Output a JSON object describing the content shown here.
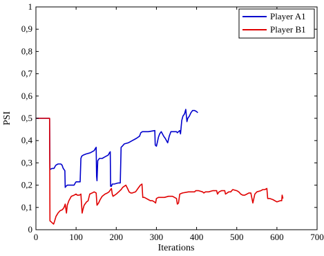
{
  "chart_data": {
    "type": "line",
    "xlabel": "Iterations",
    "ylabel": "PSI",
    "xlim": [
      0,
      700
    ],
    "ylim": [
      0,
      1
    ],
    "xticks": [
      "0",
      "100",
      "200",
      "300",
      "400",
      "500",
      "600",
      "700"
    ],
    "yticks": [
      "0",
      "0,1",
      "0,2",
      "0,3",
      "0,4",
      "0,5",
      "0,6",
      "0,7",
      "0,8",
      "0,9",
      "1"
    ],
    "grid": false,
    "legend": "top-right",
    "series": [
      {
        "name": "Player A1",
        "color": "#0000cc",
        "points": [
          [
            0,
            0.5
          ],
          [
            33,
            0.5
          ],
          [
            34,
            0.5
          ],
          [
            35,
            0.27
          ],
          [
            40,
            0.275
          ],
          [
            45,
            0.275
          ],
          [
            48,
            0.285
          ],
          [
            50,
            0.29
          ],
          [
            55,
            0.295
          ],
          [
            62,
            0.295
          ],
          [
            65,
            0.29
          ],
          [
            68,
            0.275
          ],
          [
            72,
            0.265
          ],
          [
            73,
            0.19
          ],
          [
            75,
            0.195
          ],
          [
            78,
            0.2
          ],
          [
            85,
            0.2
          ],
          [
            95,
            0.2
          ],
          [
            98,
            0.21
          ],
          [
            100,
            0.215
          ],
          [
            108,
            0.215
          ],
          [
            110,
            0.215
          ],
          [
            112,
            0.32
          ],
          [
            114,
            0.33
          ],
          [
            118,
            0.335
          ],
          [
            125,
            0.34
          ],
          [
            135,
            0.345
          ],
          [
            145,
            0.355
          ],
          [
            148,
            0.365
          ],
          [
            150,
            0.37
          ],
          [
            151,
            0.24
          ],
          [
            152,
            0.22
          ],
          [
            154,
            0.31
          ],
          [
            158,
            0.32
          ],
          [
            165,
            0.32
          ],
          [
            170,
            0.325
          ],
          [
            175,
            0.33
          ],
          [
            180,
            0.335
          ],
          [
            183,
            0.345
          ],
          [
            185,
            0.35
          ],
          [
            186,
            0.195
          ],
          [
            188,
            0.195
          ],
          [
            190,
            0.205
          ],
          [
            195,
            0.205
          ],
          [
            205,
            0.21
          ],
          [
            210,
            0.21
          ],
          [
            212,
            0.37
          ],
          [
            215,
            0.375
          ],
          [
            220,
            0.385
          ],
          [
            230,
            0.39
          ],
          [
            240,
            0.4
          ],
          [
            250,
            0.41
          ],
          [
            258,
            0.42
          ],
          [
            261,
            0.435
          ],
          [
            265,
            0.44
          ],
          [
            280,
            0.44
          ],
          [
            296,
            0.445
          ],
          [
            297,
            0.38
          ],
          [
            300,
            0.375
          ],
          [
            302,
            0.39
          ],
          [
            305,
            0.415
          ],
          [
            308,
            0.43
          ],
          [
            312,
            0.44
          ],
          [
            318,
            0.42
          ],
          [
            322,
            0.41
          ],
          [
            328,
            0.39
          ],
          [
            332,
            0.42
          ],
          [
            336,
            0.44
          ],
          [
            345,
            0.44
          ],
          [
            350,
            0.44
          ],
          [
            352,
            0.435
          ],
          [
            355,
            0.44
          ],
          [
            358,
            0.445
          ],
          [
            360,
            0.43
          ],
          [
            363,
            0.49
          ],
          [
            366,
            0.51
          ],
          [
            370,
            0.52
          ],
          [
            373,
            0.54
          ],
          [
            376,
            0.485
          ],
          [
            378,
            0.5
          ],
          [
            382,
            0.51
          ],
          [
            386,
            0.525
          ],
          [
            390,
            0.535
          ],
          [
            395,
            0.535
          ],
          [
            400,
            0.53
          ],
          [
            403,
            0.525
          ]
        ]
      },
      {
        "name": "Player B1",
        "color": "#e00000",
        "points": [
          [
            0,
            0.5
          ],
          [
            34,
            0.5
          ],
          [
            35,
            0.04
          ],
          [
            38,
            0.035
          ],
          [
            41,
            0.03
          ],
          [
            44,
            0.025
          ],
          [
            46,
            0.035
          ],
          [
            50,
            0.06
          ],
          [
            55,
            0.075
          ],
          [
            60,
            0.085
          ],
          [
            66,
            0.09
          ],
          [
            70,
            0.1
          ],
          [
            73,
            0.115
          ],
          [
            76,
            0.075
          ],
          [
            78,
            0.11
          ],
          [
            82,
            0.13
          ],
          [
            88,
            0.15
          ],
          [
            95,
            0.155
          ],
          [
            100,
            0.16
          ],
          [
            103,
            0.155
          ],
          [
            108,
            0.155
          ],
          [
            112,
            0.16
          ],
          [
            115,
            0.075
          ],
          [
            117,
            0.09
          ],
          [
            120,
            0.11
          ],
          [
            126,
            0.125
          ],
          [
            130,
            0.13
          ],
          [
            134,
            0.16
          ],
          [
            140,
            0.165
          ],
          [
            145,
            0.17
          ],
          [
            150,
            0.165
          ],
          [
            152,
            0.11
          ],
          [
            156,
            0.12
          ],
          [
            160,
            0.135
          ],
          [
            165,
            0.15
          ],
          [
            172,
            0.16
          ],
          [
            178,
            0.165
          ],
          [
            182,
            0.17
          ],
          [
            188,
            0.185
          ],
          [
            190,
            0.16
          ],
          [
            192,
            0.15
          ],
          [
            196,
            0.155
          ],
          [
            200,
            0.16
          ],
          [
            206,
            0.17
          ],
          [
            212,
            0.18
          ],
          [
            216,
            0.19
          ],
          [
            220,
            0.195
          ],
          [
            224,
            0.2
          ],
          [
            228,
            0.185
          ],
          [
            232,
            0.17
          ],
          [
            236,
            0.165
          ],
          [
            240,
            0.165
          ],
          [
            248,
            0.17
          ],
          [
            254,
            0.185
          ],
          [
            260,
            0.2
          ],
          [
            264,
            0.205
          ],
          [
            266,
            0.145
          ],
          [
            270,
            0.145
          ],
          [
            275,
            0.14
          ],
          [
            280,
            0.135
          ],
          [
            285,
            0.13
          ],
          [
            290,
            0.13
          ],
          [
            295,
            0.125
          ],
          [
            298,
            0.12
          ],
          [
            300,
            0.14
          ],
          [
            305,
            0.145
          ],
          [
            310,
            0.145
          ],
          [
            320,
            0.145
          ],
          [
            330,
            0.15
          ],
          [
            340,
            0.15
          ],
          [
            345,
            0.145
          ],
          [
            350,
            0.14
          ],
          [
            352,
            0.115
          ],
          [
            355,
            0.12
          ],
          [
            358,
            0.16
          ],
          [
            365,
            0.165
          ],
          [
            380,
            0.17
          ],
          [
            395,
            0.17
          ],
          [
            398,
            0.175
          ],
          [
            405,
            0.175
          ],
          [
            415,
            0.17
          ],
          [
            418,
            0.165
          ],
          [
            422,
            0.17
          ],
          [
            430,
            0.17
          ],
          [
            440,
            0.175
          ],
          [
            450,
            0.175
          ],
          [
            452,
            0.16
          ],
          [
            456,
            0.17
          ],
          [
            462,
            0.175
          ],
          [
            470,
            0.175
          ],
          [
            472,
            0.16
          ],
          [
            476,
            0.165
          ],
          [
            480,
            0.17
          ],
          [
            485,
            0.17
          ],
          [
            490,
            0.18
          ],
          [
            500,
            0.175
          ],
          [
            505,
            0.17
          ],
          [
            510,
            0.16
          ],
          [
            515,
            0.155
          ],
          [
            520,
            0.155
          ],
          [
            525,
            0.16
          ],
          [
            530,
            0.165
          ],
          [
            535,
            0.165
          ],
          [
            540,
            0.12
          ],
          [
            545,
            0.16
          ],
          [
            550,
            0.17
          ],
          [
            560,
            0.175
          ],
          [
            565,
            0.18
          ],
          [
            570,
            0.18
          ],
          [
            575,
            0.185
          ],
          [
            577,
            0.14
          ],
          [
            582,
            0.14
          ],
          [
            590,
            0.135
          ],
          [
            600,
            0.125
          ],
          [
            608,
            0.13
          ],
          [
            612,
            0.13
          ],
          [
            613,
            0.155
          ],
          [
            615,
            0.14
          ]
        ]
      }
    ]
  }
}
